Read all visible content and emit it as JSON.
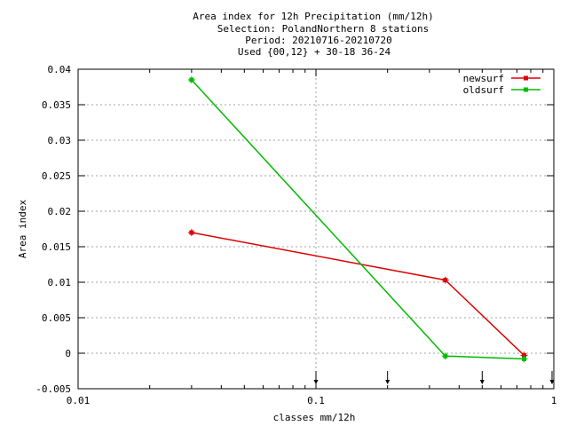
{
  "chart_data": {
    "type": "line",
    "title_lines": [
      "Area index  for 12h Precipitation (mm/12h)",
      "Selection: PolandNorthern      8 stations",
      "Period: 20210716-20210720",
      "Used {00,12} + 30-18 36-24"
    ],
    "xlabel": "classes mm/12h",
    "ylabel": "Area index",
    "x_scale": "log",
    "xlim": [
      0.01,
      1
    ],
    "ylim": [
      -0.005,
      0.04
    ],
    "x_ticks": [
      {
        "value": 0.01,
        "label": "0.01"
      },
      {
        "value": 0.1,
        "label": "0.1"
      },
      {
        "value": 1,
        "label": "1"
      }
    ],
    "y_ticks": [
      {
        "value": 0.04,
        "label": "0.04"
      },
      {
        "value": 0.035,
        "label": "0.035"
      },
      {
        "value": 0.03,
        "label": "0.03"
      },
      {
        "value": 0.025,
        "label": "0.025"
      },
      {
        "value": 0.02,
        "label": "0.02"
      },
      {
        "value": 0.015,
        "label": "0.015"
      },
      {
        "value": 0.01,
        "label": "0.01"
      },
      {
        "value": 0.005,
        "label": "0.005"
      },
      {
        "value": 0,
        "label": "0"
      },
      {
        "value": -0.005,
        "label": "-0.005"
      }
    ],
    "grid": true,
    "legend_position": "top-right",
    "class_markers": [
      0.1,
      0.2,
      0.5,
      1
    ],
    "series": [
      {
        "name": "newsurf",
        "color": "#dd0000",
        "points": [
          {
            "x": 0.03,
            "y": 0.017
          },
          {
            "x": 0.35,
            "y": 0.0103
          },
          {
            "x": 0.75,
            "y": -0.0003
          }
        ]
      },
      {
        "name": "oldsurf",
        "color": "#00bb00",
        "points": [
          {
            "x": 0.03,
            "y": 0.0385
          },
          {
            "x": 0.35,
            "y": -0.0004
          },
          {
            "x": 0.75,
            "y": -0.0008
          }
        ]
      }
    ]
  }
}
